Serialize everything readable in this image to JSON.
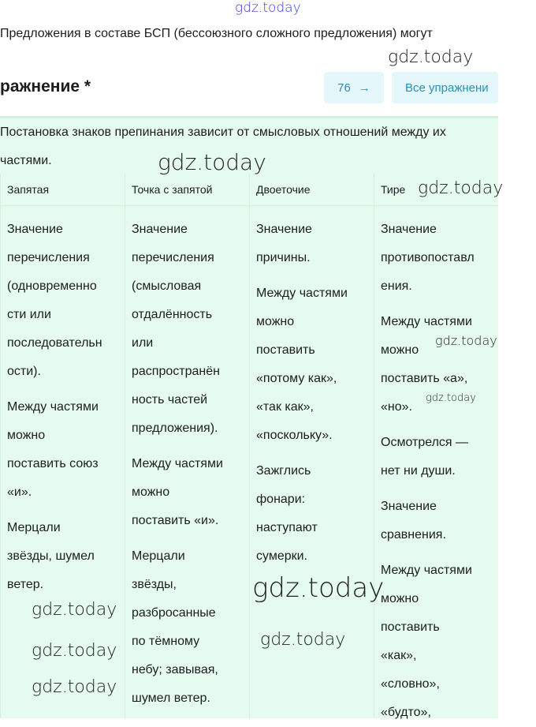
{
  "watermark": "gdz.today",
  "intro": "Предложения в составе БСП (бессоюзного сложного предложения) могут",
  "title": "ражнение *",
  "next_button": "76",
  "arrow": "→",
  "all_button": "Все упражнени",
  "lead": "Постановка знаков препинания зависит от смысловых отношений между их частями.",
  "columns": [
    {
      "header": "Запятая",
      "paragraphs": [
        [
          "Значение",
          "перечисления",
          "(одновременно",
          "сти или",
          "последовательн",
          "ости)."
        ],
        [
          "Между частями",
          "можно",
          "поставить союз",
          "«и»."
        ],
        [
          "Мерцали",
          "звёзды, шумел",
          "ветер."
        ]
      ]
    },
    {
      "header": "Точка с запятой",
      "paragraphs": [
        [
          "Значение",
          "перечисления",
          "(смысловая",
          "отдалённость",
          "или",
          "распространён",
          "ность частей",
          "предложения)."
        ],
        [
          "Между частями",
          "можно",
          "поставить «и»."
        ],
        [
          "Мерцали",
          "звёзды,",
          "разбросанные",
          "по тёмному",
          "небу; завывая,",
          "шумел ветер."
        ]
      ]
    },
    {
      "header": "Двоеточие",
      "paragraphs": [
        [
          "Значение",
          "причины."
        ],
        [
          "Между частями",
          "можно",
          "поставить",
          "«потому как»,",
          "«так как»,",
          "«поскольку»."
        ],
        [
          "Зажглись",
          "фонари:",
          "наступают",
          "сумерки."
        ]
      ]
    },
    {
      "header": "Тире",
      "paragraphs": [
        [
          "Значение",
          "противопоставл",
          "ения."
        ],
        [
          "Между частями",
          "можно",
          "поставить «а»,",
          "«но»."
        ],
        [
          "Осмотрелся —",
          "нет ни души."
        ],
        [
          "Значение",
          "сравнения."
        ],
        [
          "Между частями",
          "можно",
          "поставить",
          "«как»,",
          "«словно»,",
          "«будто»,"
        ]
      ]
    }
  ]
}
